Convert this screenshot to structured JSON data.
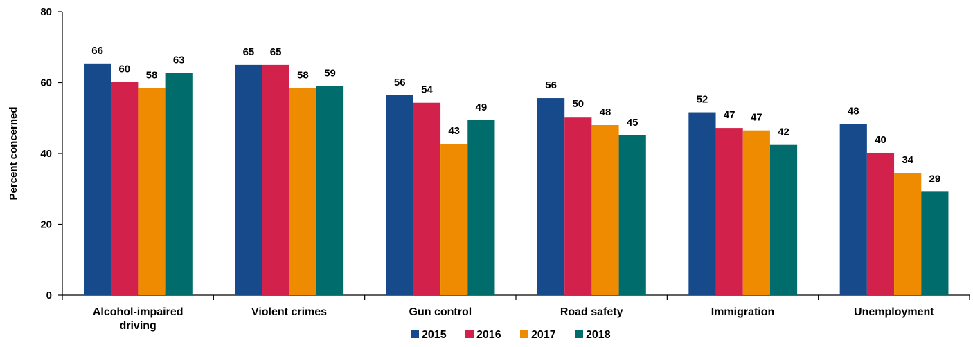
{
  "chart_data": {
    "type": "bar",
    "title": "",
    "xlabel": "",
    "ylabel": "Percent concerned",
    "ylim": [
      0,
      80
    ],
    "yticks": [
      0,
      20,
      40,
      60,
      80
    ],
    "grid": false,
    "legend_position": "bottom",
    "categories": [
      [
        "Alcohol-impaired",
        "driving"
      ],
      [
        "Violent crimes"
      ],
      [
        "Gun control"
      ],
      [
        "Road safety"
      ],
      [
        "Immigration"
      ],
      [
        "Unemployment"
      ]
    ],
    "series": [
      {
        "name": "2015",
        "color": "#174A8B",
        "values": [
          66,
          65,
          56,
          56,
          52,
          48
        ],
        "bar_values": [
          65.4,
          65.0,
          56.4,
          55.6,
          51.6,
          48.3
        ]
      },
      {
        "name": "2016",
        "color": "#D2214B",
        "values": [
          60,
          65,
          54,
          50,
          47,
          40
        ],
        "bar_values": [
          60.2,
          65.0,
          54.3,
          50.3,
          47.2,
          40.2
        ]
      },
      {
        "name": "2017",
        "color": "#EE8B00",
        "values": [
          58,
          58,
          43,
          48,
          47,
          34
        ],
        "bar_values": [
          58.4,
          58.4,
          42.7,
          48.0,
          46.5,
          34.5
        ]
      },
      {
        "name": "2018",
        "color": "#006C6C",
        "values": [
          63,
          59,
          49,
          45,
          42,
          29
        ],
        "bar_values": [
          62.7,
          59.0,
          49.4,
          45.1,
          42.4,
          29.2
        ]
      }
    ]
  }
}
